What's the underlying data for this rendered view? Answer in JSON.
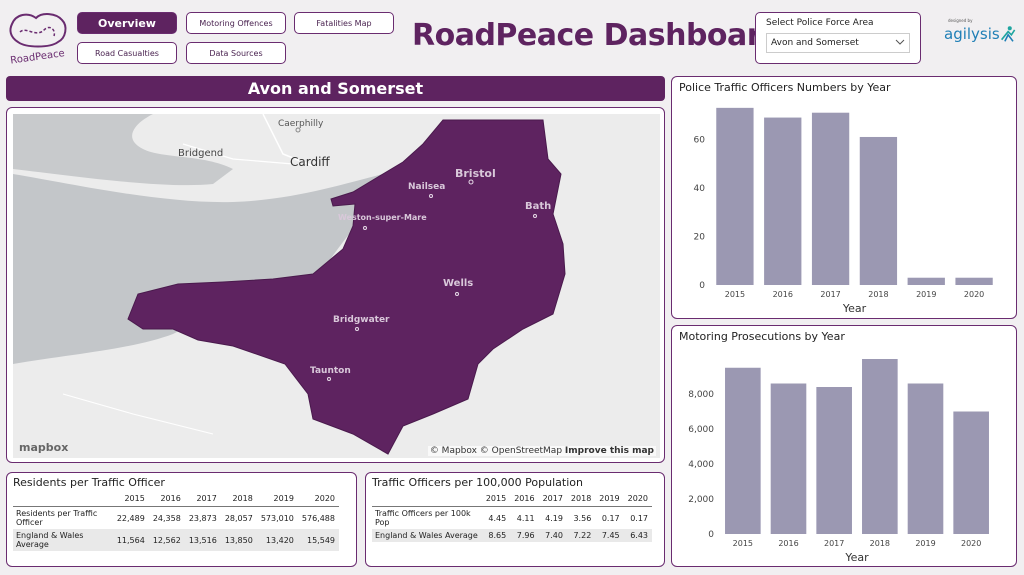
{
  "logo": {
    "text": "RoadPeace"
  },
  "nav": {
    "overview": "Overview",
    "motoring_offences": "Motoring Offences",
    "fatalities_map": "Fatalities Map",
    "road_casualties": "Road Casualties",
    "data_sources": "Data Sources"
  },
  "header": {
    "title": "RoadPeace Dashboard"
  },
  "slicer": {
    "label": "Select Police Force Area",
    "value": "Avon and Somerset"
  },
  "brand": {
    "small": "designed by",
    "name": "agilysis"
  },
  "region": {
    "title": "Avon and Somerset"
  },
  "map": {
    "places": [
      "Caerphilly",
      "Bridgend",
      "Cardiff",
      "Bristol",
      "Nailsea",
      "Bath",
      "Weston-super-Mare",
      "Wells",
      "Bridgwater",
      "Taunton"
    ],
    "attribution_1": "© Mapbox © OpenStreetMap",
    "attribution_2": "Improve this map",
    "logo": "mapbox",
    "colors": {
      "region": "#5e2360",
      "sea": "#c3c6c9",
      "land": "#ececec"
    }
  },
  "officers_chart": {
    "title": "Police Traffic Officers Numbers by Year",
    "chart_data": {
      "type": "bar",
      "categories": [
        "2015",
        "2016",
        "2017",
        "2018",
        "2019",
        "2020"
      ],
      "values": [
        73,
        69,
        71,
        61,
        3,
        3
      ],
      "xlabel": "Year",
      "ylabel": "",
      "ylim": [
        0,
        75
      ],
      "yticks": [
        "0",
        "20",
        "40",
        "60"
      ],
      "yticks_values": [
        0,
        20,
        40,
        60
      ],
      "grid": false,
      "color": "#9b98b2"
    }
  },
  "prosecutions_chart": {
    "title": "Motoring Prosecutions by Year",
    "chart_data": {
      "type": "bar",
      "categories": [
        "2015",
        "2016",
        "2017",
        "2018",
        "2019",
        "2020"
      ],
      "values": [
        9500,
        8600,
        8400,
        10000,
        8600,
        7000
      ],
      "xlabel": "Year",
      "ylabel": "",
      "ylim": [
        0,
        10400
      ],
      "yticks": [
        "0",
        "2,000",
        "4,000",
        "6,000",
        "8,000"
      ],
      "yticks_values": [
        0,
        2000,
        4000,
        6000,
        8000
      ],
      "grid": false,
      "color": "#9b98b2"
    }
  },
  "residents_table": {
    "title": "Residents per Traffic Officer",
    "columns": [
      "",
      "2015",
      "2016",
      "2017",
      "2018",
      "2019",
      "2020"
    ],
    "rows": [
      [
        "Residents per Traffic Officer",
        "22,489",
        "24,358",
        "23,873",
        "28,057",
        "573,010",
        "576,488"
      ],
      [
        "England & Wales Average",
        "11,564",
        "12,562",
        "13,516",
        "13,850",
        "13,420",
        "15,549"
      ]
    ]
  },
  "officers_table": {
    "title": "Traffic Officers per 100,000 Population",
    "columns": [
      "",
      "2015",
      "2016",
      "2017",
      "2018",
      "2019",
      "2020"
    ],
    "rows": [
      [
        "Traffic Officers per 100k Pop",
        "4.45",
        "4.11",
        "4.19",
        "3.56",
        "0.17",
        "0.17"
      ],
      [
        "England & Wales Average",
        "8.65",
        "7.96",
        "7.40",
        "7.22",
        "7.45",
        "6.43"
      ]
    ]
  }
}
